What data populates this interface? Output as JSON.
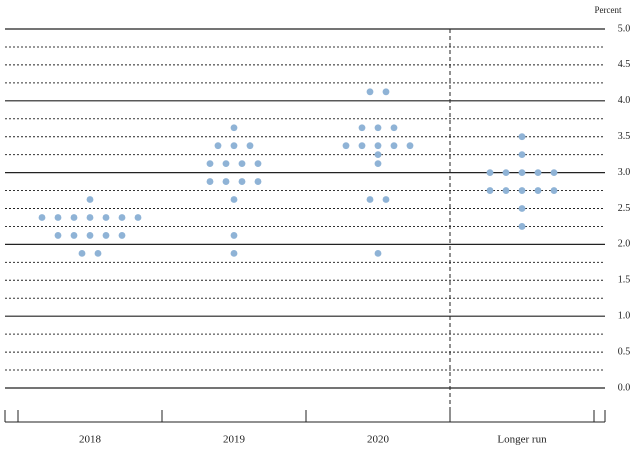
{
  "chart_data": {
    "type": "dot",
    "y_axis_label": "Percent",
    "categories": [
      "2018",
      "2019",
      "2020",
      "Longer run"
    ],
    "values": [
      [
        2.625,
        2.375,
        2.375,
        2.375,
        2.375,
        2.375,
        2.375,
        2.375,
        2.125,
        2.125,
        2.125,
        2.125,
        2.125,
        1.875,
        1.875
      ],
      [
        3.625,
        3.375,
        3.375,
        3.375,
        3.125,
        3.125,
        3.125,
        3.125,
        2.875,
        2.875,
        2.875,
        2.875,
        2.625,
        2.125,
        1.875
      ],
      [
        4.125,
        4.125,
        3.625,
        3.625,
        3.625,
        3.375,
        3.375,
        3.375,
        3.375,
        3.375,
        3.25,
        3.125,
        2.625,
        2.625,
        1.875
      ],
      [
        3.5,
        3.25,
        3.0,
        3.0,
        3.0,
        3.0,
        3.0,
        2.75,
        2.75,
        2.75,
        2.75,
        2.75,
        2.5,
        2.25
      ]
    ],
    "color": "#8fb3d6",
    "ylim": [
      0,
      5
    ],
    "yticks": [
      {
        "value": 0,
        "label": "0.0"
      },
      0.5,
      {
        "value": 1,
        "label": "1.0"
      },
      1.5,
      {
        "value": 2,
        "label": "2.0"
      },
      2.5,
      {
        "value": 3,
        "label": "3.0"
      },
      3.5,
      {
        "value": 4,
        "label": "4.0"
      },
      4.5,
      {
        "value": 5,
        "label": "5.0"
      }
    ],
    "minor_yticks": [
      0.25,
      0.75,
      1.25,
      1.75,
      2.25,
      2.75,
      3.25,
      3.75,
      4.25,
      4.75
    ],
    "grid": true
  }
}
